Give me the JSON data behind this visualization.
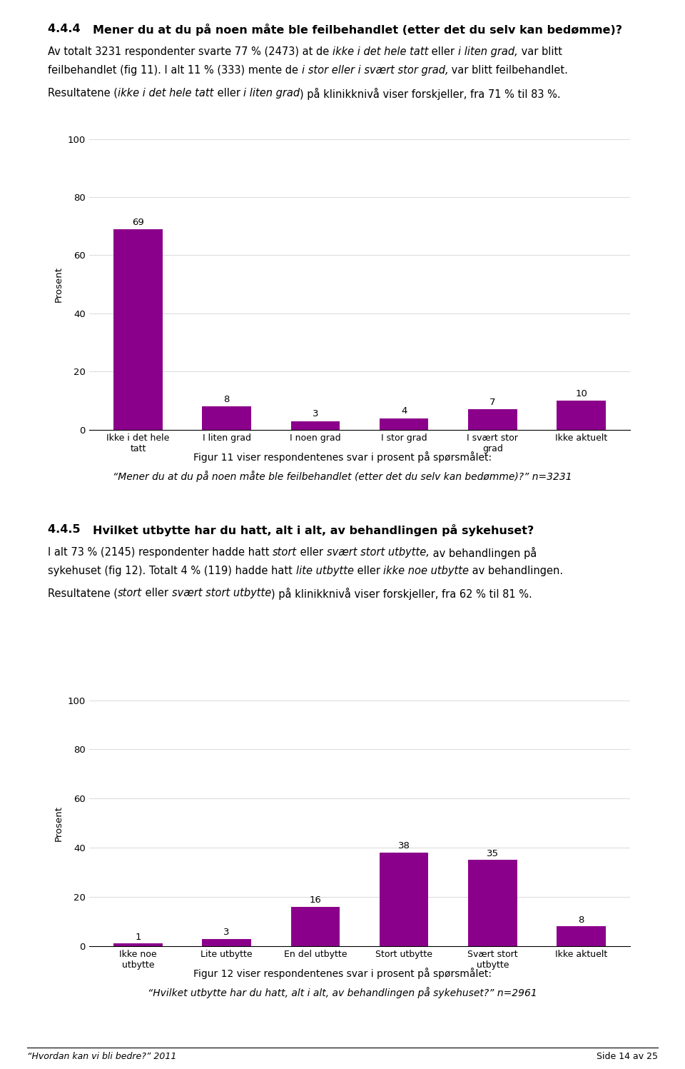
{
  "page_bg": "#ffffff",
  "bar_color": "#8B008B",
  "chart1_categories": [
    "Ikke i det hele\ntatt",
    "I liten grad",
    "I noen grad",
    "I stor grad",
    "I svært stor\ngrad",
    "Ikke aktuelt"
  ],
  "chart1_values": [
    69,
    8,
    3,
    4,
    7,
    10
  ],
  "chart1_ylabel": "Prosent",
  "chart1_ylim": [
    0,
    100
  ],
  "chart1_yticks": [
    0,
    20,
    40,
    60,
    80,
    100
  ],
  "chart1_caption_line1": "Figur 11 viser respondentenes svar i prosent på spørsmålet:",
  "chart1_caption_line2": "“Mener du at du på noen måte ble feilbehandlet (etter det du selv kan bedømme)?” n=3231",
  "chart2_categories": [
    "Ikke noe\nutbytte",
    "Lite utbytte",
    "En del utbytte",
    "Stort utbytte",
    "Svært stort\nutbytte",
    "Ikke aktuelt"
  ],
  "chart2_values": [
    1,
    3,
    16,
    38,
    35,
    8
  ],
  "chart2_ylabel": "Prosent",
  "chart2_ylim": [
    0,
    100
  ],
  "chart2_yticks": [
    0,
    20,
    40,
    60,
    80,
    100
  ],
  "chart2_caption_line1": "Figur 12 viser respondentenes svar i prosent på spørsmålet:",
  "chart2_caption_line2": "“Hvilket utbytte har du hatt, alt i alt, av behandlingen på sykehuset?” n=2961",
  "footer_left": "“Hvordan kan vi bli bedre?” 2011",
  "footer_right": "Side 14 av 25",
  "body_fontsize": 10.5,
  "title_fontsize": 11.5,
  "axis_fontsize": 9.5,
  "caption_fontsize": 10,
  "footer_fontsize": 9
}
